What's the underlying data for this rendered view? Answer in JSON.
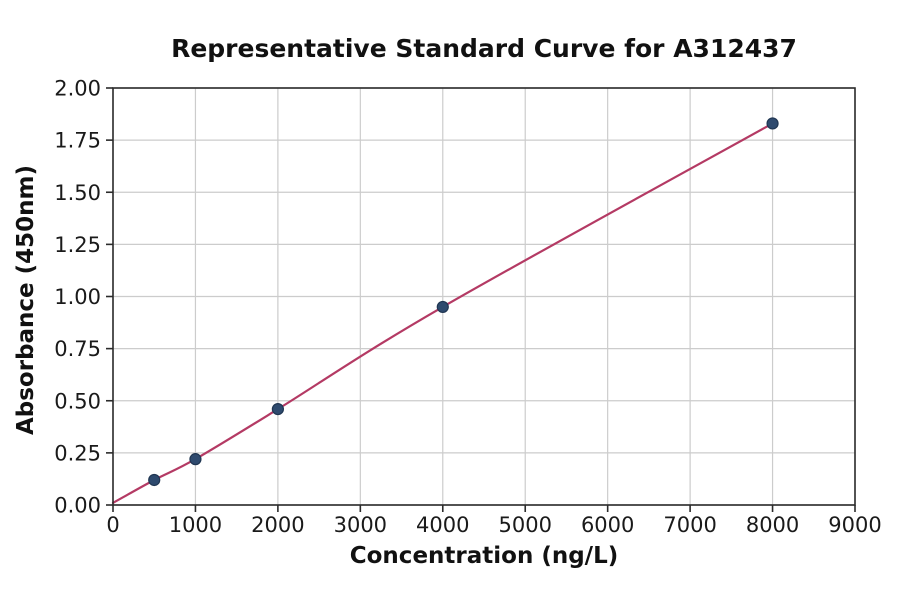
{
  "chart_data": {
    "type": "line",
    "title": "Representative Standard Curve for A312437",
    "xlabel": "Concentration (ng/L)",
    "ylabel": "Absorbance (450nm)",
    "xlim": [
      0,
      9000
    ],
    "ylim": [
      0,
      2.0
    ],
    "xticks": [
      0,
      1000,
      2000,
      3000,
      4000,
      5000,
      6000,
      7000,
      8000,
      9000
    ],
    "xtick_labels": [
      "0",
      "1000",
      "2000",
      "3000",
      "4000",
      "5000",
      "6000",
      "7000",
      "8000",
      "9000"
    ],
    "yticks": [
      0.0,
      0.25,
      0.5,
      0.75,
      1.0,
      1.25,
      1.5,
      1.75,
      2.0
    ],
    "ytick_labels": [
      "0.00",
      "0.25",
      "0.50",
      "0.75",
      "1.00",
      "1.25",
      "1.50",
      "1.75",
      "2.00"
    ],
    "grid": true,
    "legend": "none",
    "series": [
      {
        "name": "standard-curve-fit",
        "type": "smooth-line",
        "x": [
          0,
          500,
          1000,
          2000,
          4000,
          8000
        ],
        "y": [
          0.01,
          0.12,
          0.22,
          0.46,
          0.95,
          1.83
        ]
      }
    ],
    "points": {
      "name": "standard-data-points",
      "x": [
        500,
        1000,
        2000,
        4000,
        8000
      ],
      "y": [
        0.12,
        0.22,
        0.46,
        0.95,
        1.83
      ]
    },
    "colors": {
      "line": "#b43a64",
      "marker_fill": "#2e4a6e",
      "marker_edge": "#203652",
      "grid": "#cccccc",
      "spine": "#2b2b2b",
      "text": "#111111"
    }
  }
}
